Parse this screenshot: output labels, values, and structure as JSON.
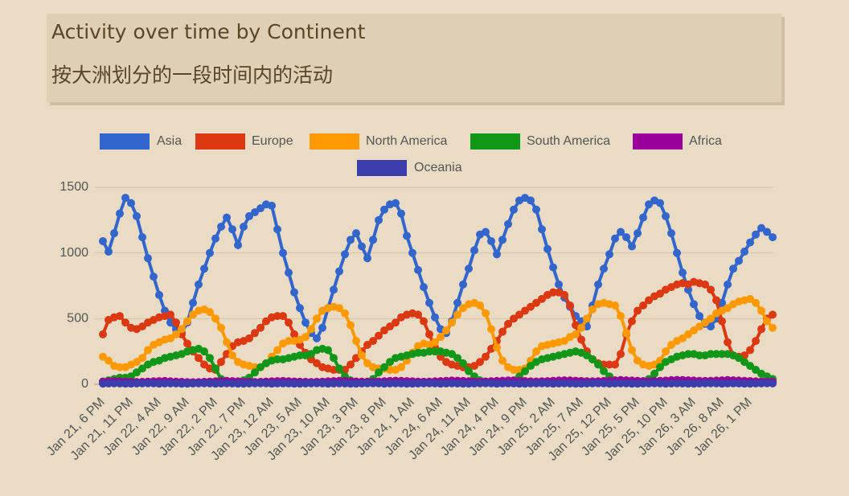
{
  "header": {
    "title": "Activity over time by Continent",
    "subtitle": "按大洲划分的一段时间内的活动"
  },
  "chart_data": {
    "type": "line",
    "ylim": [
      0,
      1500
    ],
    "yticks": [
      0,
      500,
      1000,
      1500
    ],
    "grid": true,
    "legend": "top",
    "categories": [
      "Jan 21, 6 PM",
      null,
      null,
      null,
      null,
      "Jan 21, 11 PM",
      null,
      null,
      null,
      null,
      "Jan 22, 4 AM",
      null,
      null,
      null,
      null,
      "Jan 22, 9 AM",
      null,
      null,
      null,
      null,
      "Jan 22, 2 PM",
      null,
      null,
      null,
      null,
      "Jan 22, 7 PM",
      null,
      null,
      null,
      null,
      "Jan 23, 12 AM",
      null,
      null,
      null,
      null,
      "Jan 23, 5 AM",
      null,
      null,
      null,
      null,
      "Jan 23, 10 AM",
      null,
      null,
      null,
      null,
      "Jan 23, 3 PM",
      null,
      null,
      null,
      null,
      "Jan 23, 8 PM",
      null,
      null,
      null,
      null,
      "Jan 24, 1 AM",
      null,
      null,
      null,
      null,
      "Jan 24, 6 AM",
      null,
      null,
      null,
      null,
      "Jan 24, 11 AM",
      null,
      null,
      null,
      null,
      "Jan 24, 4 PM",
      null,
      null,
      null,
      null,
      "Jan 24, 9 PM",
      null,
      null,
      null,
      null,
      "Jan 25, 2 AM",
      null,
      null,
      null,
      null,
      "Jan 25, 7 AM",
      null,
      null,
      null,
      null,
      "Jan 25, 12 PM",
      null,
      null,
      null,
      null,
      "Jan 25, 5 PM",
      null,
      null,
      null,
      null,
      "Jan 25, 10 PM",
      null,
      null,
      null,
      null,
      "Jan 26, 3 AM",
      null,
      null,
      null,
      null,
      "Jan 26, 8 AM",
      null,
      null,
      null,
      null,
      "Jan 26, 1 PM",
      null,
      null,
      null,
      null
    ],
    "series": [
      {
        "name": "Asia",
        "color": "#3366cc",
        "values": [
          1090,
          1010,
          1150,
          1300,
          1420,
          1380,
          1280,
          1120,
          960,
          820,
          680,
          560,
          470,
          420,
          390,
          470,
          620,
          760,
          880,
          1000,
          1110,
          1200,
          1270,
          1180,
          1060,
          1200,
          1280,
          1310,
          1340,
          1370,
          1360,
          1180,
          1000,
          850,
          700,
          580,
          470,
          390,
          350,
          430,
          580,
          720,
          860,
          990,
          1100,
          1150,
          1050,
          960,
          1100,
          1250,
          1330,
          1370,
          1380,
          1300,
          1130,
          1000,
          870,
          740,
          620,
          510,
          420,
          390,
          480,
          620,
          760,
          880,
          1020,
          1140,
          1160,
          1090,
          990,
          1100,
          1220,
          1330,
          1400,
          1420,
          1400,
          1330,
          1180,
          1030,
          890,
          760,
          660,
          590,
          520,
          480,
          440,
          600,
          760,
          880,
          990,
          1110,
          1160,
          1120,
          1050,
          1150,
          1270,
          1370,
          1400,
          1380,
          1280,
          1150,
          1000,
          850,
          720,
          610,
          520,
          460,
          440,
          500,
          620,
          760,
          880,
          940,
          1010,
          1080,
          1140,
          1190,
          1160,
          1120
        ]
      },
      {
        "name": "Europe",
        "color": "#dc3912",
        "values": [
          380,
          490,
          510,
          520,
          470,
          430,
          420,
          440,
          470,
          490,
          510,
          520,
          530,
          470,
          380,
          310,
          250,
          200,
          150,
          120,
          110,
          170,
          230,
          290,
          320,
          330,
          350,
          390,
          430,
          480,
          510,
          520,
          520,
          470,
          380,
          300,
          240,
          190,
          160,
          130,
          120,
          110,
          110,
          110,
          150,
          200,
          250,
          300,
          330,
          370,
          410,
          440,
          470,
          510,
          530,
          540,
          530,
          480,
          380,
          280,
          210,
          170,
          150,
          140,
          130,
          130,
          140,
          170,
          210,
          270,
          330,
          400,
          460,
          500,
          530,
          560,
          590,
          620,
          650,
          680,
          700,
          700,
          680,
          600,
          450,
          340,
          250,
          190,
          160,
          150,
          150,
          150,
          230,
          380,
          480,
          560,
          600,
          640,
          670,
          690,
          720,
          740,
          760,
          770,
          760,
          780,
          770,
          760,
          720,
          640,
          480,
          320,
          220,
          210,
          220,
          260,
          330,
          420,
          500,
          530
        ]
      },
      {
        "name": "North America",
        "color": "#ff9900",
        "values": [
          210,
          180,
          140,
          130,
          130,
          150,
          170,
          200,
          260,
          300,
          320,
          340,
          350,
          380,
          420,
          480,
          530,
          560,
          570,
          550,
          500,
          430,
          320,
          220,
          170,
          150,
          140,
          130,
          130,
          160,
          210,
          260,
          310,
          330,
          330,
          340,
          360,
          420,
          500,
          560,
          580,
          590,
          580,
          540,
          450,
          330,
          220,
          160,
          130,
          120,
          120,
          110,
          110,
          130,
          180,
          240,
          290,
          310,
          300,
          320,
          360,
          410,
          470,
          530,
          580,
          610,
          620,
          600,
          540,
          420,
          280,
          180,
          130,
          110,
          110,
          120,
          180,
          250,
          290,
          300,
          310,
          320,
          330,
          360,
          380,
          430,
          500,
          570,
          610,
          620,
          610,
          600,
          520,
          390,
          260,
          180,
          150,
          140,
          150,
          180,
          250,
          300,
          330,
          350,
          380,
          410,
          440,
          470,
          500,
          540,
          560,
          580,
          610,
          630,
          640,
          650,
          620,
          560,
          480,
          430
        ]
      },
      {
        "name": "South America",
        "color": "#109618",
        "values": [
          20,
          30,
          40,
          50,
          50,
          60,
          90,
          120,
          150,
          170,
          180,
          200,
          210,
          220,
          230,
          250,
          260,
          270,
          250,
          200,
          120,
          40,
          10,
          10,
          20,
          30,
          50,
          90,
          130,
          160,
          180,
          190,
          190,
          200,
          210,
          220,
          220,
          230,
          260,
          270,
          260,
          200,
          120,
          60,
          30,
          20,
          20,
          20,
          40,
          90,
          130,
          170,
          200,
          210,
          220,
          230,
          240,
          240,
          250,
          250,
          250,
          240,
          230,
          200,
          160,
          100,
          60,
          30,
          20,
          10,
          10,
          10,
          10,
          30,
          60,
          100,
          140,
          170,
          190,
          200,
          210,
          220,
          230,
          240,
          250,
          240,
          220,
          190,
          150,
          100,
          60,
          30,
          20,
          20,
          20,
          20,
          20,
          40,
          80,
          130,
          170,
          190,
          210,
          220,
          230,
          230,
          220,
          220,
          230,
          230,
          230,
          230,
          220,
          200,
          170,
          140,
          110,
          80,
          60,
          40
        ]
      },
      {
        "name": "Africa",
        "color": "#990099",
        "values": [
          20,
          22,
          24,
          22,
          20,
          18,
          17,
          18,
          20,
          22,
          24,
          25,
          22,
          20,
          18,
          16,
          15,
          16,
          18,
          20,
          22,
          24,
          26,
          24,
          22,
          20,
          18,
          17,
          18,
          20,
          22,
          24,
          25,
          23,
          21,
          19,
          18,
          17,
          18,
          20,
          22,
          24,
          26,
          25,
          23,
          21,
          19,
          18,
          19,
          21,
          23,
          25,
          27,
          26,
          24,
          22,
          20,
          19,
          20,
          22,
          24,
          26,
          28,
          27,
          25,
          23,
          21,
          20,
          21,
          23,
          25,
          27,
          29,
          28,
          26,
          24,
          22,
          21,
          22,
          24,
          26,
          28,
          30,
          29,
          27,
          25,
          23,
          22,
          23,
          25,
          27,
          29,
          32,
          30,
          28,
          26,
          24,
          23,
          24,
          26,
          28,
          31,
          33,
          32,
          30,
          28,
          26,
          25,
          26,
          28,
          30,
          32,
          30,
          28,
          26,
          24,
          22,
          21,
          20,
          20
        ]
      },
      {
        "name": "Oceania",
        "color": "#3b3eac",
        "values": [
          5,
          6,
          7,
          6,
          5,
          5,
          6,
          7,
          8,
          7,
          5,
          6,
          7,
          6,
          5,
          5,
          6,
          7,
          8,
          7,
          5,
          6,
          7,
          6,
          5,
          5,
          6,
          7,
          8,
          7,
          5,
          6,
          7,
          6,
          5,
          5,
          6,
          7,
          8,
          7,
          5,
          6,
          7,
          6,
          5,
          5,
          6,
          7,
          8,
          7,
          5,
          6,
          7,
          6,
          5,
          5,
          6,
          7,
          8,
          7,
          5,
          6,
          7,
          6,
          5,
          5,
          6,
          7,
          8,
          7,
          5,
          6,
          7,
          6,
          5,
          5,
          6,
          7,
          8,
          7,
          5,
          6,
          7,
          6,
          5,
          5,
          6,
          7,
          8,
          7,
          5,
          6,
          7,
          6,
          5,
          5,
          6,
          7,
          8,
          7,
          5,
          6,
          7,
          6,
          5,
          5,
          6,
          7,
          8,
          7,
          5,
          6,
          7,
          6,
          5,
          5,
          6,
          7,
          8,
          7
        ]
      }
    ]
  }
}
